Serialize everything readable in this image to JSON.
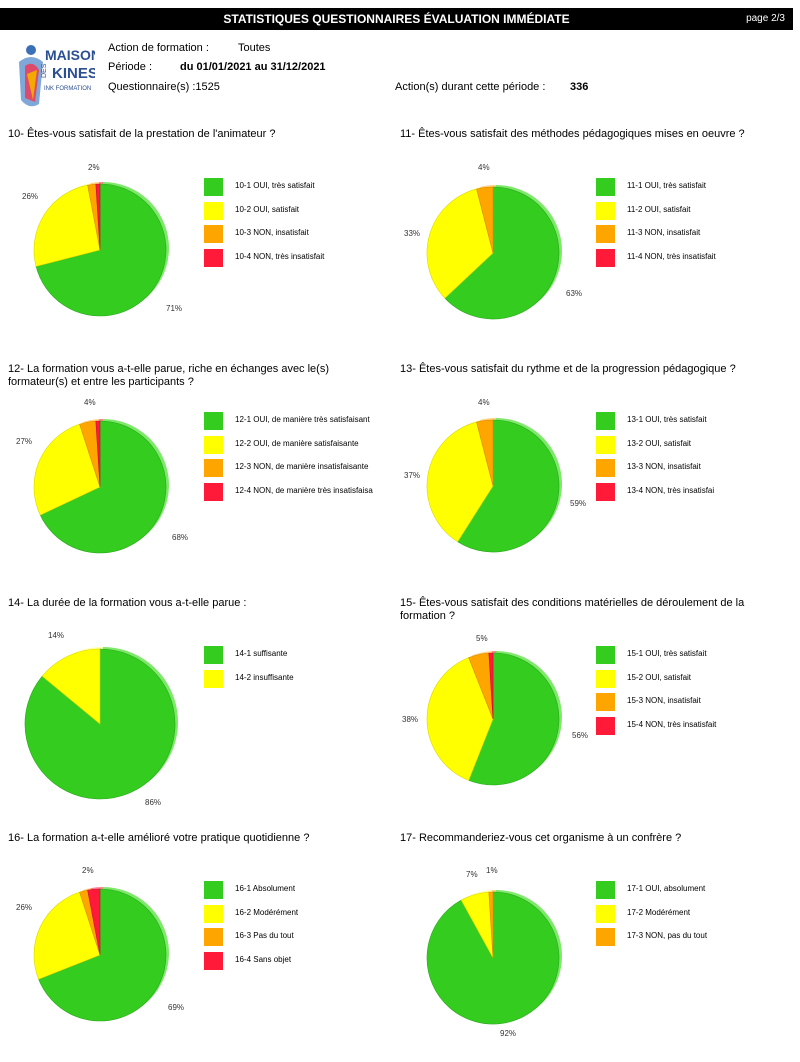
{
  "header": {
    "title": "STATISTIQUES QUESTIONNAIRES ÉVALUATION IMMÉDIATE",
    "page": "page 2/3",
    "action_label": "Action de formation :",
    "action_value": "Toutes",
    "period_label": "Période :",
    "period_value": "du 01/01/2021 au 31/12/2021",
    "questionnaires": "Questionnaire(s) :1525",
    "actions_label": "Action(s) durant cette période :",
    "actions_value": "336",
    "logo_text": [
      "MAISON",
      "DES",
      "KINES",
      "INK FORMATION"
    ]
  },
  "colors": {
    "green": "#33cc1f",
    "yellow": "#ffff00",
    "orange": "#ffa500",
    "red": "#ff1a3a"
  },
  "chart_data": [
    {
      "type": "pie",
      "title": "10- Êtes-vous satisfait de la prestation de l'animateur ?",
      "categories": [
        "10-1 OUI, très satisfait",
        "10-2 OUI, satisfait",
        "10-3 NON, insatisfait",
        "10-4 NON, très insatisfait"
      ],
      "values": [
        71,
        26,
        2,
        1
      ],
      "labels": [
        "71%",
        "26%",
        "2%",
        ""
      ],
      "colors": [
        "#33cc1f",
        "#ffff00",
        "#ffa500",
        "#ff1a3a"
      ]
    },
    {
      "type": "pie",
      "title": "11- Êtes-vous satisfait des méthodes pédagogiques mises en oeuvre ?",
      "categories": [
        "11-1 OUI, très satisfait",
        "11-2 OUI, satisfait",
        "11-3 NON, insatisfait",
        "11-4 NON, très insatisfait"
      ],
      "values": [
        63,
        33,
        4,
        0
      ],
      "labels": [
        "63%",
        "33%",
        "4%",
        ""
      ],
      "colors": [
        "#33cc1f",
        "#ffff00",
        "#ffa500",
        "#ff1a3a"
      ]
    },
    {
      "type": "pie",
      "title": "12- La formation vous a-t-elle parue, riche en échanges avec le(s) formateur(s) et entre les participants ?",
      "categories": [
        "12-1 OUI, de manière très satisfaisant",
        "12-2 OUI, de manière satisfaisante",
        "12-3 NON, de manière insatisfaisante",
        "12-4 NON, de manière très insatisfaisa"
      ],
      "values": [
        68,
        27,
        4,
        1
      ],
      "labels": [
        "68%",
        "27%",
        "4%",
        ""
      ],
      "colors": [
        "#33cc1f",
        "#ffff00",
        "#ffa500",
        "#ff1a3a"
      ]
    },
    {
      "type": "pie",
      "title": "13- Êtes-vous satisfait du rythme et de la progression pédagogique ?",
      "categories": [
        "13-1 OUI, très satisfait",
        "13-2 OUI, satisfait",
        "13-3 NON, insatisfait",
        "13-4 NON, très insatisfai"
      ],
      "values": [
        59,
        37,
        4,
        0
      ],
      "labels": [
        "59%",
        "37%",
        "4%",
        ""
      ],
      "colors": [
        "#33cc1f",
        "#ffff00",
        "#ffa500",
        "#ff1a3a"
      ]
    },
    {
      "type": "pie",
      "title": "14- La durée de la formation vous a-t-elle parue :",
      "categories": [
        "14-1 suffisante",
        "14-2 insuffisante"
      ],
      "values": [
        86,
        14
      ],
      "labels": [
        "86%",
        "14%"
      ],
      "colors": [
        "#33cc1f",
        "#ffff00"
      ]
    },
    {
      "type": "pie",
      "title": "15- Êtes-vous satisfait des conditions matérielles de déroulement de la formation ?",
      "categories": [
        "15-1 OUI, très satisfait",
        "15-2 OUI, satisfait",
        "15-3 NON, insatisfait",
        "15-4 NON, très insatisfait"
      ],
      "values": [
        56,
        38,
        5,
        1
      ],
      "labels": [
        "56%",
        "38%",
        "5%",
        ""
      ],
      "colors": [
        "#33cc1f",
        "#ffff00",
        "#ffa500",
        "#ff1a3a"
      ]
    },
    {
      "type": "pie",
      "title": "16- La formation a-t-elle amélioré votre pratique quotidienne ?",
      "categories": [
        "16-1 Absolument",
        "16-2 Modérément",
        "16-3 Pas du tout",
        "16-4 Sans objet"
      ],
      "values": [
        69,
        26,
        2,
        3
      ],
      "labels": [
        "69%",
        "26%",
        "2%",
        ""
      ],
      "colors": [
        "#33cc1f",
        "#ffff00",
        "#ffa500",
        "#ff1a3a"
      ]
    },
    {
      "type": "pie",
      "title": "17- Recommanderiez-vous cet organisme à un confrère ?",
      "categories": [
        "17-1 OUI, absolument",
        "17-2 Modérément",
        "17-3 NON, pas du tout"
      ],
      "values": [
        92,
        7,
        1
      ],
      "labels": [
        "92%",
        "7%",
        "1%"
      ],
      "colors": [
        "#33cc1f",
        "#ffff00",
        "#ffa500"
      ]
    }
  ]
}
